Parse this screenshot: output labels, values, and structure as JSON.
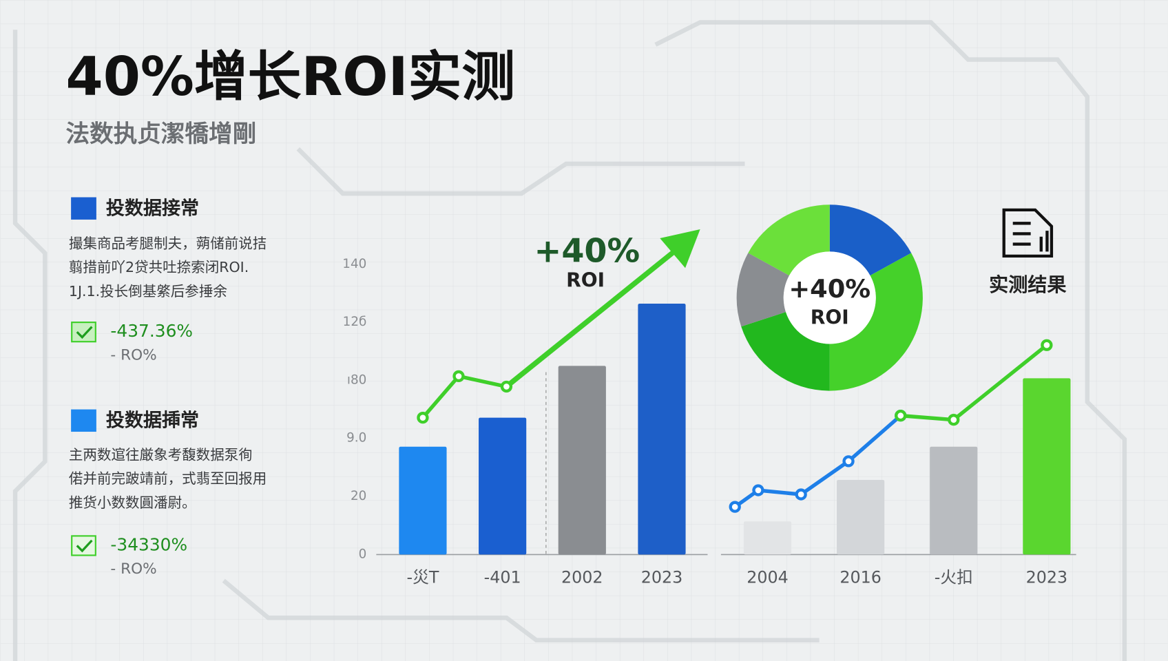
{
  "header": {
    "title": "40%增长ROI实测",
    "subtitle": "法数执贞潔犞增剛"
  },
  "sidebar": [
    {
      "title": "投数据接常",
      "lines": [
        "撮集商品考腿制夫，蒴储前说拮",
        "翦措前吖2贷共吐捺索闭ROI.",
        "1J.1.投长倒基綮后参捶余"
      ],
      "stat": "-437.36%",
      "stat_label": "- RO%"
    },
    {
      "title": "投数据揷常",
      "lines": [
        "主两数逭往厳象考馥数据泵徇",
        "偌并前完跛靖前，式翡至回报用",
        "推货小数数圓潘尉。"
      ],
      "stat": "-34330%",
      "stat_label": "- RO%"
    }
  ],
  "result_label": "实测结果",
  "chart_data": [
    {
      "type": "bar",
      "categories": [
        "-災T",
        "-401",
        "2002",
        "2023"
      ],
      "values": [
        52,
        66,
        91,
        121
      ],
      "colors": [
        "#1e88f0",
        "#1a5fd0",
        "#8a8d91",
        "#1e5fc8"
      ],
      "ylim": [
        0,
        140
      ],
      "yticks": [
        0,
        {
          "value": 28,
          "label": "20"
        },
        {
          "value": 56,
          "label": "9.0"
        },
        {
          "value": 84,
          "label": "ı80"
        },
        {
          "value": 112,
          "label": "12б"
        },
        140
      ],
      "lines": [
        {
          "color": "#3fcf2a",
          "x": [
            0,
            0.45,
            1.05
          ],
          "values": [
            66,
            86,
            81
          ]
        }
      ],
      "annotation": "+40%",
      "annotation_sub": "ROI"
    },
    {
      "type": "pie",
      "values": [
        17,
        33,
        20,
        13,
        17
      ],
      "colors": [
        "#1a5fc8",
        "#45d12a",
        "#22b81e",
        "#8a8d91",
        "#6be03a"
      ],
      "center_text": "+40%",
      "center_sub": "ROI"
    },
    {
      "type": "bar",
      "categories": [
        "2004",
        "2016",
        "-火扣",
        "2023"
      ],
      "values": [
        16,
        36,
        52,
        85
      ],
      "colors": [
        "#e2e4e6",
        "#d3d6d9",
        "#b9bcc0",
        "#5ad62f"
      ],
      "ylim": [
        0,
        140
      ],
      "lines": [
        {
          "color": "#1e7fe8",
          "x": [
            -0.35,
            -0.1,
            0.36,
            0.87,
            1.43
          ],
          "values": [
            23,
            31,
            29,
            45,
            67
          ]
        },
        {
          "color": "#3fcf2a",
          "x": [
            1.43,
            2.0,
            3.0
          ],
          "values": [
            67,
            65,
            101
          ]
        }
      ]
    }
  ]
}
